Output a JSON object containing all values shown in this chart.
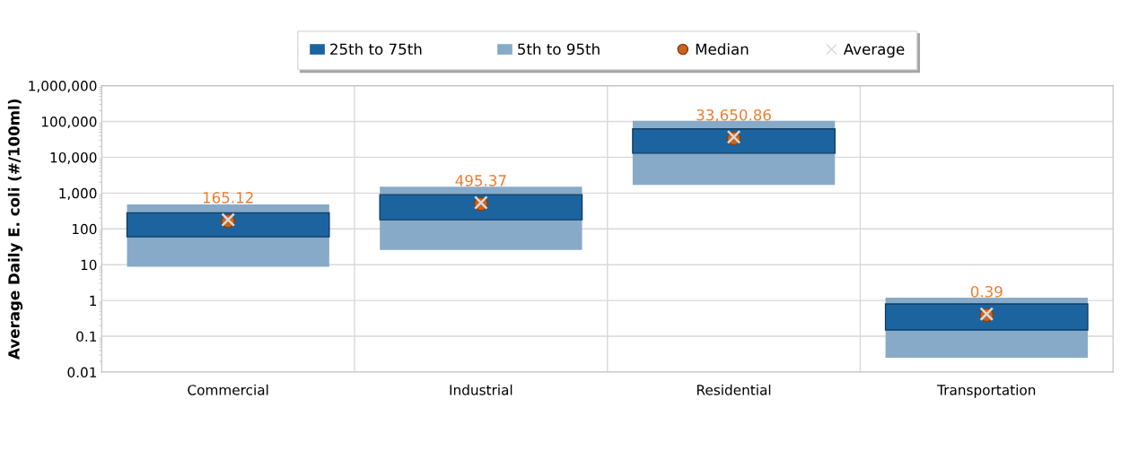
{
  "chart_data": {
    "type": "bar",
    "ylabel": "Average Daily E. coli (#/100ml)",
    "categories": [
      "Commercial",
      "Industrial",
      "Residential",
      "Transportation"
    ],
    "series": [
      {
        "name": "25th to 75th",
        "color": "#1b64a0",
        "base": [
          60,
          180,
          13000,
          0.15
        ],
        "values": [
          220,
          720,
          49000,
          0.65
        ]
      },
      {
        "name": "5th to 95th",
        "color": "#87aac8",
        "base": [
          8.7,
          26,
          1700,
          0.025
        ],
        "values": [
          471.3,
          1474,
          103300,
          1.175
        ]
      },
      {
        "name": "Median",
        "type": "scatter",
        "marker": "circle",
        "color": "#c8641e",
        "values": [
          165.12,
          495.37,
          33650.86,
          0.39
        ],
        "value_labels": [
          "165.12",
          "495.37",
          "33,650.86",
          "0.39"
        ]
      },
      {
        "name": "Average",
        "type": "scatter",
        "marker": "cross",
        "color": "#d9d9d9",
        "values": [
          180,
          540,
          37000,
          0.42
        ]
      }
    ],
    "log": "y",
    "ylim": [
      0.01,
      1000000
    ],
    "yticks": [
      {
        "value": 0.01,
        "label": "0.01"
      },
      {
        "value": 0.1,
        "label": "0.1"
      },
      {
        "value": 1,
        "label": "1"
      },
      {
        "value": 10,
        "label": "10"
      },
      {
        "value": 100,
        "label": "100"
      },
      {
        "value": 1000,
        "label": "1,000"
      },
      {
        "value": 10000,
        "label": "10,000"
      },
      {
        "value": 100000,
        "label": "100,000"
      },
      {
        "value": 1000000,
        "label": "1,000,000"
      }
    ],
    "grid": "y",
    "legend": "top"
  }
}
